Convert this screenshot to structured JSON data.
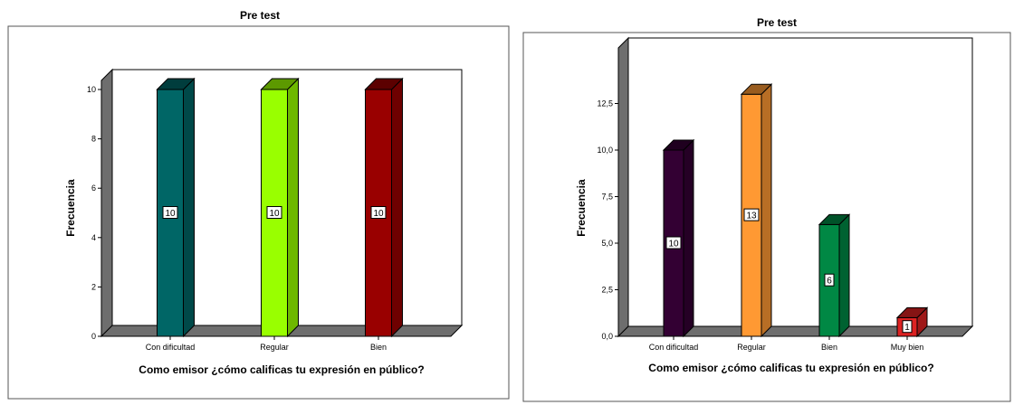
{
  "chart_data": [
    {
      "type": "bar",
      "title": "Pre test",
      "xlabel": "Como emisor ¿cómo calificas tu expresión en público?",
      "ylabel": "Frecuencia",
      "categories": [
        "Con dificultad",
        "Regular",
        "Bien"
      ],
      "values": [
        10,
        10,
        10
      ],
      "data_labels": [
        "10",
        "10",
        "10"
      ],
      "colors": [
        "#006666",
        "#99ff00",
        "#990000"
      ],
      "ylim": [
        0,
        10
      ],
      "yticks": [
        "0",
        "2",
        "4",
        "6",
        "8",
        "10"
      ],
      "grid": false,
      "legend": "none"
    },
    {
      "type": "bar",
      "title": "Pre test",
      "xlabel": "Como emisor ¿cómo calificas tu expresión en público?",
      "ylabel": "Frecuencia",
      "categories": [
        "Con dificultad",
        "Regular",
        "Bien",
        "Muy bien"
      ],
      "values": [
        10,
        13,
        6,
        1
      ],
      "data_labels": [
        "10",
        "13",
        "6",
        "1"
      ],
      "colors": [
        "#330033",
        "#ff9933",
        "#008844",
        "#dd2222"
      ],
      "ylim": [
        0,
        15
      ],
      "yticks": [
        "0,0",
        "2,5",
        "5,0",
        "7,5",
        "10,0",
        "12,5"
      ],
      "grid": false,
      "legend": "none"
    }
  ]
}
